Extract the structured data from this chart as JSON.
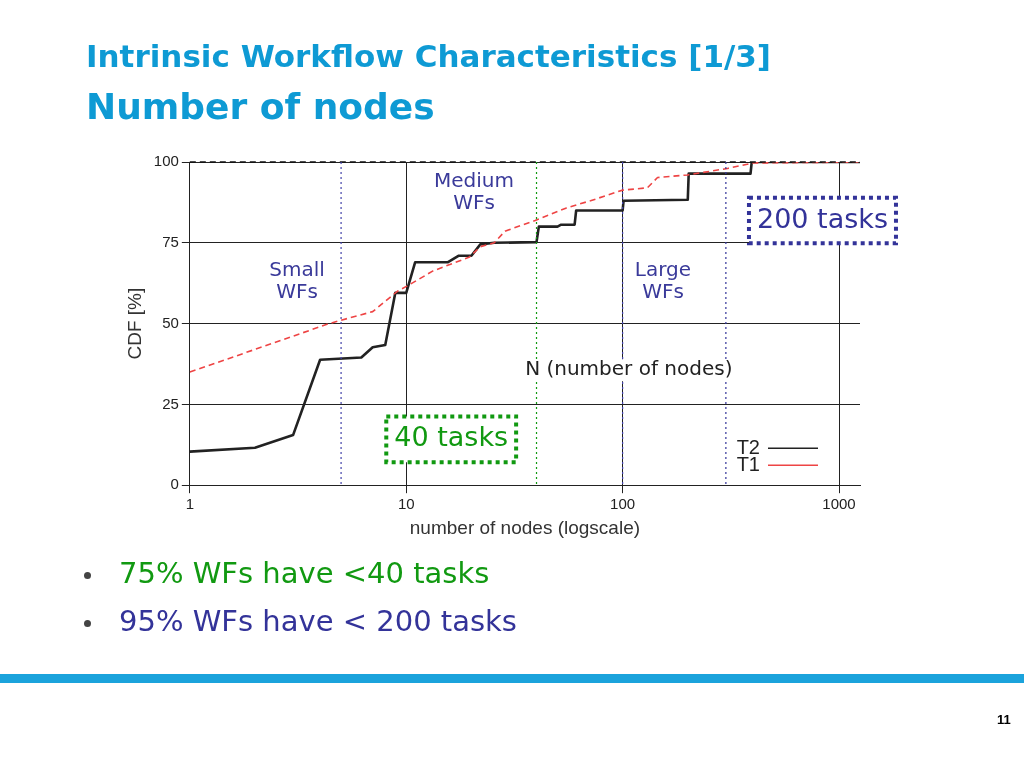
{
  "chart_data": {
    "type": "line",
    "title": "Intrinsic Workflow Characteristics [1/3]",
    "subtitle": "Number of nodes",
    "xlabel": "number of nodes (logscale)",
    "ylabel": "CDF [%]",
    "log": "x",
    "xlim": [
      1,
      1250
    ],
    "xticks": [
      1,
      10,
      100,
      1000
    ],
    "ylim": [
      0,
      100
    ],
    "yticks": [
      0,
      25,
      50,
      75,
      100
    ],
    "grid": true,
    "legend": "bottom right",
    "marker": "none",
    "series": [
      {
        "name": "T2",
        "color": "#222222",
        "line_style": "solid",
        "x": [
          1,
          2,
          3,
          4,
          6.2,
          7,
          8,
          8.9,
          10,
          11,
          15.6,
          17.5,
          20,
          22,
          25.5,
          40,
          41,
          50,
          52,
          60,
          61,
          100,
          101,
          200,
          202,
          390,
          395,
          1250
        ],
        "values": [
          10.4,
          11.6,
          15.5,
          38.8,
          39.5,
          42.7,
          43.4,
          59.5,
          59.5,
          69,
          69,
          71,
          71,
          74.5,
          75,
          75.2,
          80,
          80,
          80.6,
          80.6,
          85,
          85,
          88,
          88.3,
          96.4,
          96.4,
          100,
          100
        ]
      },
      {
        "name": "T1",
        "color": "#ee4444",
        "line_style": "dashed",
        "x": [
          1,
          4.4,
          6,
          7,
          9.1,
          10.2,
          13.3,
          19.6,
          22,
          25.5,
          28.6,
          39.4,
          55,
          71,
          100,
          130,
          145,
          200,
          305,
          400,
          1250
        ],
        "values": [
          35,
          50,
          52.5,
          53.7,
          60,
          61.8,
          66.3,
          70.6,
          73.8,
          75,
          78.6,
          81.9,
          85.8,
          88,
          91.3,
          92,
          95.2,
          96,
          98,
          99.7,
          100
        ]
      }
    ],
    "ref_lines": [
      {
        "axis": "y",
        "value": 100,
        "label": null,
        "color": "#111111",
        "line_style": "dashed"
      },
      {
        "axis": "x",
        "value": 5,
        "label": null,
        "color": "#4444aa",
        "line_style": "dotted"
      },
      {
        "axis": "x",
        "value": 100,
        "label": null,
        "color": "#4444aa",
        "line_style": "dotted"
      },
      {
        "axis": "x",
        "value": 40,
        "label": null,
        "color": "#119911",
        "line_style": "dotted"
      },
      {
        "axis": "x",
        "value": 300,
        "label": null,
        "color": "#333399",
        "line_style": "dotted"
      }
    ],
    "annotations": [
      "Small\nWFs",
      "Medium\nWFs",
      "Large\nWFs",
      "N (number of nodes)",
      "40 tasks",
      "200 tasks",
      "75% WFs have <40 tasks",
      "95% WFs have < 200 tasks",
      "11"
    ]
  }
}
